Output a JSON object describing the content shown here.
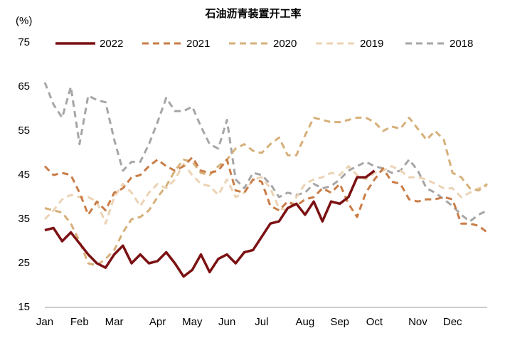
{
  "chart_data": {
    "type": "line",
    "title": "石油沥青装置开工率",
    "y_label": "(%)",
    "categories": [
      "Jan",
      null,
      null,
      null,
      "Feb",
      null,
      null,
      null,
      "Mar",
      null,
      null,
      null,
      null,
      "Apr",
      null,
      null,
      null,
      "May",
      null,
      null,
      null,
      "Jun",
      null,
      null,
      null,
      "Jul",
      null,
      null,
      null,
      null,
      "Aug",
      null,
      null,
      null,
      "Sep",
      null,
      null,
      null,
      "Oct",
      null,
      null,
      null,
      null,
      "Nov",
      null,
      null,
      null,
      "Dec",
      null,
      null,
      null,
      null
    ],
    "ylim": [
      15,
      75
    ],
    "yticks": [
      15,
      25,
      35,
      45,
      55,
      65,
      75
    ],
    "grid": false,
    "series": [
      {
        "name": "2022",
        "color": "#7b1113",
        "dash": "solid",
        "values": [
          32.5,
          33,
          30,
          32,
          29.5,
          27,
          25,
          24,
          27,
          29,
          25,
          27,
          25,
          25.5,
          27.5,
          25,
          22,
          23.5,
          27,
          23,
          26,
          27,
          25,
          27.5,
          28,
          31,
          34,
          34.5,
          37.5,
          38.5,
          36,
          39,
          34.5,
          39,
          38.5,
          40,
          44.5,
          44.5,
          46,
          null,
          null,
          null,
          null,
          null,
          null,
          null,
          null,
          null,
          null,
          null,
          null,
          null
        ]
      },
      {
        "name": "2021",
        "color": "#c97d48",
        "dash": "dashed",
        "values": [
          47,
          45,
          45.5,
          45,
          41,
          36,
          39,
          37,
          41,
          42,
          44.5,
          45,
          47,
          48.5,
          47,
          46,
          47,
          49,
          46,
          45.5,
          46,
          48.5,
          41.5,
          41,
          44,
          43.5,
          38,
          37,
          39,
          38,
          39.5,
          40,
          42,
          41,
          43,
          38.5,
          35.5,
          41,
          44,
          46.5,
          43.5,
          43,
          39.5,
          39,
          39.5,
          39.5,
          40,
          39.5,
          34,
          34,
          33.5,
          32
        ]
      },
      {
        "name": "2020",
        "color": "#d6b07a",
        "dash": "dashed",
        "values": [
          37.5,
          37,
          36.5,
          34,
          30,
          25,
          24.5,
          26,
          28,
          32,
          35,
          35.5,
          37,
          40,
          42.5,
          46,
          48.5,
          48,
          45.5,
          45,
          47,
          48.5,
          51,
          52,
          50.5,
          50,
          52,
          53.5,
          49.5,
          49.5,
          54,
          58,
          57.5,
          57,
          57,
          57.5,
          58,
          58,
          57,
          55,
          56,
          55.5,
          58,
          55.5,
          53,
          55,
          53,
          45.5,
          44.5,
          42,
          41.5,
          43
        ]
      },
      {
        "name": "2019",
        "color": "#ecd3b4",
        "dash": "dashed",
        "values": [
          35,
          37,
          39.5,
          40.5,
          40,
          40,
          39,
          34,
          40,
          43,
          41,
          38,
          41,
          43,
          42,
          44,
          47.5,
          45,
          43,
          42.5,
          40.5,
          44,
          40,
          41,
          44,
          44.5,
          42,
          37.5,
          37,
          40,
          43,
          44,
          44.5,
          45.5,
          45,
          47,
          45,
          44,
          45.5,
          46,
          47,
          46,
          44.5,
          44.5,
          44,
          43,
          42,
          42,
          40,
          41,
          42,
          42.5
        ]
      },
      {
        "name": "2018",
        "color": "#a6a6a6",
        "dash": "dashed",
        "values": [
          66,
          61,
          58,
          65,
          52,
          63,
          62,
          61.5,
          53,
          46,
          48,
          48,
          52,
          57,
          62.5,
          59.5,
          59.5,
          60.5,
          56,
          52,
          51,
          57.5,
          44,
          42,
          45.5,
          45,
          43,
          40,
          41,
          40.5,
          41,
          43,
          42,
          42.5,
          44,
          46,
          47,
          48,
          47,
          46.5,
          45.5,
          46,
          48.5,
          46,
          42,
          41,
          39.5,
          38,
          36,
          34.5,
          36,
          37
        ]
      }
    ]
  }
}
